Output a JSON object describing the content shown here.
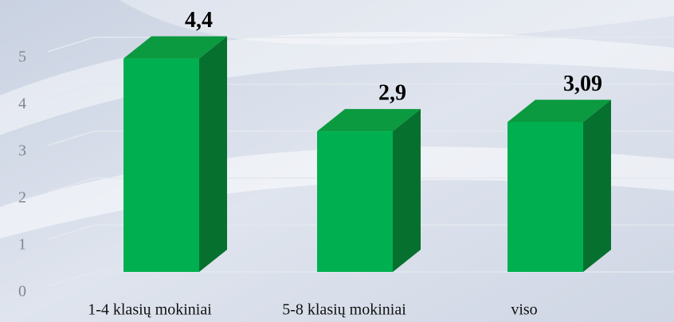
{
  "chart_data": {
    "type": "bar",
    "categories": [
      "1-4 klasių mokiniai",
      "5-8 klasių mokiniai",
      "viso"
    ],
    "values": [
      4.4,
      2.9,
      3.09
    ],
    "value_labels": [
      "4,4",
      "2,9",
      "3,09"
    ],
    "color": "#00b050",
    "ylim": [
      0,
      5
    ],
    "yticks": [
      0,
      1,
      2,
      3,
      4,
      5
    ],
    "grid": true
  }
}
